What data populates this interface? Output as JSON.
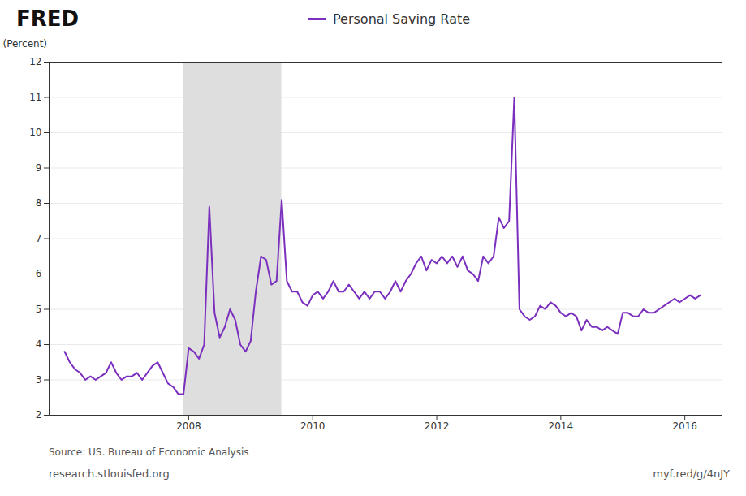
{
  "chart_data": {
    "type": "line",
    "title": "Personal Saving Rate",
    "ylabel": "(Percent)",
    "color": "#7B2FBE",
    "annotations": [
      "FRED",
      "Source: US. Bureau of Economic Analysis",
      "research.stlouisfed.org",
      "myf.red/g/4nJY"
    ],
    "shaded": [
      {
        "start": 2007.917,
        "end": 2009.5,
        "color": "#DEDEDE"
      }
    ],
    "xlim": [
      2005.75,
      2016.6
    ],
    "xticks": [
      2008,
      2010,
      2012,
      2014,
      2016
    ],
    "ylim": [
      2,
      12
    ],
    "yticks": [
      2,
      3,
      4,
      5,
      6,
      7,
      8,
      9,
      10,
      11,
      12
    ],
    "grid": true,
    "x": [
      2006.0,
      2006.083,
      2006.167,
      2006.25,
      2006.333,
      2006.417,
      2006.5,
      2006.583,
      2006.667,
      2006.75,
      2006.833,
      2006.917,
      2007.0,
      2007.083,
      2007.167,
      2007.25,
      2007.333,
      2007.417,
      2007.5,
      2007.583,
      2007.667,
      2007.75,
      2007.833,
      2007.917,
      2008.0,
      2008.083,
      2008.167,
      2008.25,
      2008.333,
      2008.417,
      2008.5,
      2008.583,
      2008.667,
      2008.75,
      2008.833,
      2008.917,
      2009.0,
      2009.083,
      2009.167,
      2009.25,
      2009.333,
      2009.417,
      2009.5,
      2009.583,
      2009.667,
      2009.75,
      2009.833,
      2009.917,
      2010.0,
      2010.083,
      2010.167,
      2010.25,
      2010.333,
      2010.417,
      2010.5,
      2010.583,
      2010.667,
      2010.75,
      2010.833,
      2010.917,
      2011.0,
      2011.083,
      2011.167,
      2011.25,
      2011.333,
      2011.417,
      2011.5,
      2011.583,
      2011.667,
      2011.75,
      2011.833,
      2011.917,
      2012.0,
      2012.083,
      2012.167,
      2012.25,
      2012.333,
      2012.417,
      2012.5,
      2012.583,
      2012.667,
      2012.75,
      2012.833,
      2012.917,
      2013.0,
      2013.083,
      2013.167,
      2013.25,
      2013.333,
      2013.417,
      2013.5,
      2013.583,
      2013.667,
      2013.75,
      2013.833,
      2013.917,
      2014.0,
      2014.083,
      2014.167,
      2014.25,
      2014.333,
      2014.417,
      2014.5,
      2014.583,
      2014.667,
      2014.75,
      2014.833,
      2014.917,
      2015.0,
      2015.083,
      2015.167,
      2015.25,
      2015.333,
      2015.417,
      2015.5,
      2015.583,
      2015.667,
      2015.75,
      2015.833,
      2015.917,
      2016.0,
      2016.083,
      2016.167,
      2016.25
    ],
    "values": [
      3.8,
      3.5,
      3.3,
      3.2,
      3.0,
      3.1,
      3.0,
      3.1,
      3.2,
      3.5,
      3.2,
      3.0,
      3.1,
      3.1,
      3.2,
      3.0,
      3.2,
      3.4,
      3.5,
      3.2,
      2.9,
      2.8,
      2.6,
      2.6,
      3.9,
      3.8,
      3.6,
      4.0,
      7.9,
      4.9,
      4.2,
      4.5,
      5.0,
      4.7,
      4.0,
      3.8,
      4.1,
      5.5,
      6.5,
      6.4,
      5.7,
      5.8,
      8.1,
      5.8,
      5.5,
      5.5,
      5.2,
      5.1,
      5.4,
      5.5,
      5.3,
      5.5,
      5.8,
      5.5,
      5.5,
      5.7,
      5.5,
      5.3,
      5.5,
      5.3,
      5.5,
      5.5,
      5.3,
      5.5,
      5.8,
      5.5,
      5.8,
      6.0,
      6.3,
      6.5,
      6.1,
      6.4,
      6.3,
      6.5,
      6.3,
      6.5,
      6.2,
      6.5,
      6.1,
      6.0,
      5.8,
      6.5,
      6.3,
      6.5,
      7.6,
      7.3,
      7.5,
      11.0,
      5.0,
      4.8,
      4.7,
      4.8,
      5.1,
      5.0,
      5.2,
      5.1,
      4.9,
      4.8,
      4.9,
      4.8,
      4.4,
      4.7,
      4.5,
      4.5,
      4.4,
      4.5,
      4.4,
      4.3,
      4.9,
      4.9,
      4.8,
      4.8,
      5.0,
      4.9,
      4.9,
      5.0,
      5.1,
      5.2,
      5.3,
      5.2,
      5.3,
      5.4,
      5.3,
      5.4
    ]
  }
}
